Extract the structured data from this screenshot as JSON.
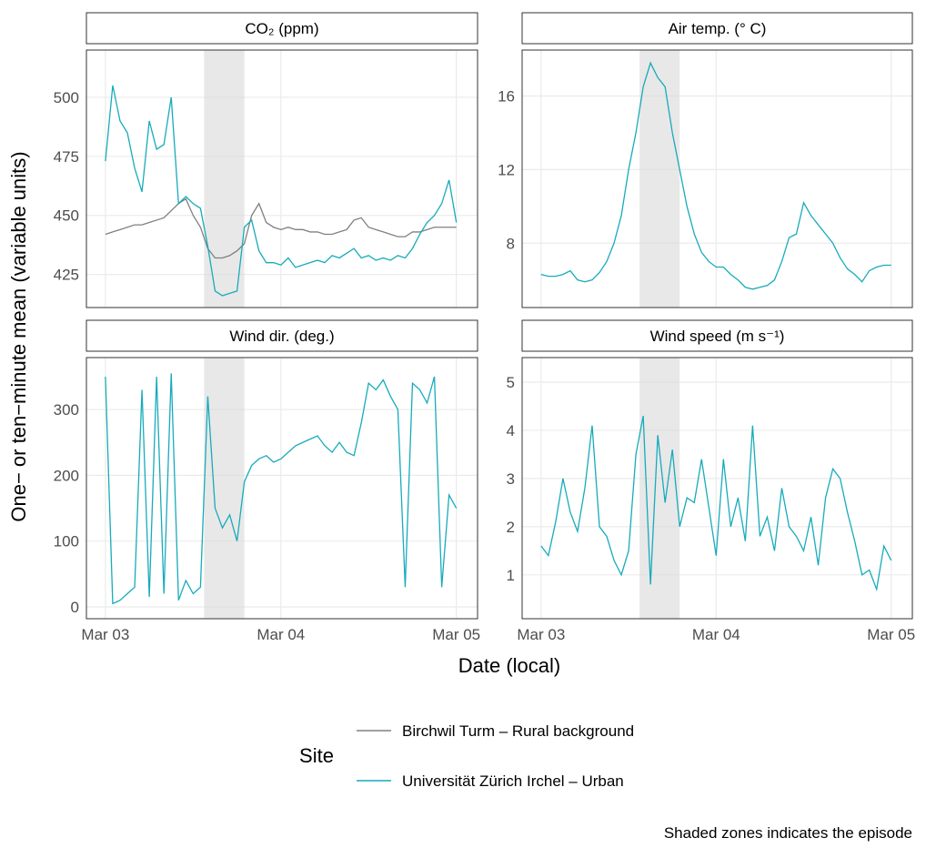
{
  "chart_data": [
    {
      "type": "line",
      "title": "CO₂ (ppm)",
      "x": [
        0,
        1,
        2,
        3,
        4,
        5,
        6,
        7,
        8,
        9,
        10,
        11,
        12,
        13,
        14,
        15,
        16,
        17,
        18,
        19,
        20,
        21,
        22,
        23,
        24,
        25,
        26,
        27,
        28,
        29,
        30,
        31,
        32,
        33,
        34,
        35,
        36,
        37,
        38,
        39,
        40,
        41,
        42,
        43,
        44,
        45,
        46,
        47,
        48
      ],
      "xlim": [
        -2.6,
        50.9
      ],
      "xticks": [
        {
          "value": 0,
          "label": "Mar 03"
        },
        {
          "value": 24,
          "label": "Mar 04"
        },
        {
          "value": 48,
          "label": "Mar 05"
        }
      ],
      "ylim": [
        411,
        520
      ],
      "yticks": [
        425,
        450,
        475,
        500
      ],
      "shaded": [
        13.5,
        19
      ],
      "grid": true,
      "series": [
        {
          "name": "Birchwil Turm – Rural background",
          "color": "#808080",
          "values": [
            442,
            443,
            444,
            445,
            446,
            446,
            447,
            448,
            449,
            452,
            455,
            457,
            450,
            445,
            436,
            432,
            432,
            433,
            435,
            438,
            450,
            455,
            447,
            445,
            444,
            445,
            444,
            444,
            443,
            443,
            442,
            442,
            443,
            444,
            448,
            449,
            445,
            444,
            443,
            442,
            441,
            441,
            443,
            443,
            444,
            445,
            445,
            445,
            445
          ]
        },
        {
          "name": "Universität Zürich Irchel – Urban",
          "color": "#17abbb",
          "values": [
            473,
            505,
            490,
            485,
            470,
            460,
            490,
            478,
            480,
            500,
            455,
            458,
            455,
            453,
            437,
            418,
            416,
            417,
            418,
            445,
            448,
            435,
            430,
            430,
            429,
            432,
            428,
            429,
            430,
            431,
            430,
            433,
            432,
            434,
            436,
            432,
            433,
            431,
            432,
            431,
            433,
            432,
            436,
            442,
            447,
            450,
            455,
            465,
            447
          ]
        }
      ]
    },
    {
      "type": "line",
      "title": "Air temp. (° C)",
      "x": [
        0,
        1,
        2,
        3,
        4,
        5,
        6,
        7,
        8,
        9,
        10,
        11,
        12,
        13,
        14,
        15,
        16,
        17,
        18,
        19,
        20,
        21,
        22,
        23,
        24,
        25,
        26,
        27,
        28,
        29,
        30,
        31,
        32,
        33,
        34,
        35,
        36,
        37,
        38,
        39,
        40,
        41,
        42,
        43,
        44,
        45,
        46,
        47,
        48
      ],
      "xlim": [
        -2.6,
        50.9
      ],
      "xticks": [
        {
          "value": 0,
          "label": "Mar 03"
        },
        {
          "value": 24,
          "label": "Mar 04"
        },
        {
          "value": 48,
          "label": "Mar 05"
        }
      ],
      "ylim": [
        4.5,
        18.5
      ],
      "yticks": [
        8,
        12,
        16
      ],
      "shaded": [
        13.5,
        19
      ],
      "grid": true,
      "series": [
        {
          "name": "Universität Zürich Irchel – Urban",
          "color": "#17abbb",
          "values": [
            6.3,
            6.2,
            6.2,
            6.3,
            6.5,
            6.0,
            5.9,
            6.0,
            6.4,
            7.0,
            8.0,
            9.5,
            12,
            14,
            16.5,
            17.8,
            17,
            16.5,
            14,
            12,
            10,
            8.5,
            7.5,
            7.0,
            6.7,
            6.7,
            6.3,
            6.0,
            5.6,
            5.5,
            5.6,
            5.7,
            6.0,
            7.0,
            8.3,
            8.5,
            10.2,
            9.5,
            9.0,
            8.5,
            8.0,
            7.2,
            6.6,
            6.3,
            5.9,
            6.5,
            6.7,
            6.8,
            6.8
          ]
        }
      ]
    },
    {
      "type": "line",
      "title": "Wind dir. (deg.)",
      "x": [
        0,
        1,
        2,
        3,
        4,
        5,
        6,
        7,
        8,
        9,
        10,
        11,
        12,
        13,
        14,
        15,
        16,
        17,
        18,
        19,
        20,
        21,
        22,
        23,
        24,
        25,
        26,
        27,
        28,
        29,
        30,
        31,
        32,
        33,
        34,
        35,
        36,
        37,
        38,
        39,
        40,
        41,
        42,
        43,
        44,
        45,
        46,
        47,
        48
      ],
      "xlim": [
        -2.6,
        50.9
      ],
      "xticks": [
        {
          "value": 0,
          "label": "Mar 03"
        },
        {
          "value": 24,
          "label": "Mar 04"
        },
        {
          "value": 48,
          "label": "Mar 05"
        }
      ],
      "ylim": [
        -18,
        379
      ],
      "yticks": [
        0,
        100,
        200,
        300
      ],
      "shaded": [
        13.5,
        19
      ],
      "grid": true,
      "series": [
        {
          "name": "Universität Zürich Irchel – Urban",
          "color": "#17abbb",
          "values": [
            350,
            5,
            10,
            20,
            30,
            330,
            15,
            350,
            20,
            355,
            10,
            40,
            20,
            30,
            320,
            150,
            120,
            140,
            100,
            190,
            215,
            225,
            230,
            220,
            225,
            235,
            245,
            250,
            255,
            260,
            245,
            235,
            250,
            235,
            230,
            280,
            340,
            330,
            345,
            320,
            300,
            30,
            340,
            330,
            310,
            350,
            30,
            170,
            150
          ]
        }
      ]
    },
    {
      "type": "line",
      "title": "Wind speed (m s⁻¹)",
      "x": [
        0,
        1,
        2,
        3,
        4,
        5,
        6,
        7,
        8,
        9,
        10,
        11,
        12,
        13,
        14,
        15,
        16,
        17,
        18,
        19,
        20,
        21,
        22,
        23,
        24,
        25,
        26,
        27,
        28,
        29,
        30,
        31,
        32,
        33,
        34,
        35,
        36,
        37,
        38,
        39,
        40,
        41,
        42,
        43,
        44,
        45,
        46,
        47,
        48
      ],
      "xlim": [
        -2.6,
        50.9
      ],
      "xticks": [
        {
          "value": 0,
          "label": "Mar 03"
        },
        {
          "value": 24,
          "label": "Mar 04"
        },
        {
          "value": 48,
          "label": "Mar 05"
        }
      ],
      "ylim": [
        0.09,
        5.51
      ],
      "yticks": [
        1,
        2,
        3,
        4,
        5
      ],
      "shaded": [
        13.5,
        19
      ],
      "grid": true,
      "series": [
        {
          "name": "Universität Zürich Irchel – Urban",
          "color": "#17abbb",
          "values": [
            1.6,
            1.4,
            2.1,
            3.0,
            2.3,
            1.9,
            2.8,
            4.1,
            2.0,
            1.8,
            1.3,
            1.0,
            1.5,
            3.5,
            4.3,
            0.8,
            3.9,
            2.5,
            3.6,
            2.0,
            2.6,
            2.5,
            3.4,
            2.4,
            1.4,
            3.4,
            2.0,
            2.6,
            1.7,
            4.1,
            1.8,
            2.2,
            1.5,
            2.8,
            2.0,
            1.8,
            1.5,
            2.2,
            1.2,
            2.6,
            3.2,
            3.0,
            2.3,
            1.7,
            1.0,
            1.1,
            0.7,
            1.6,
            1.3
          ]
        }
      ]
    }
  ],
  "y_label": "One− or ten−minute mean (variable units)",
  "x_label": "Date (local)",
  "legend_title": "Site",
  "caption": "Shaded zones indicates the episode"
}
